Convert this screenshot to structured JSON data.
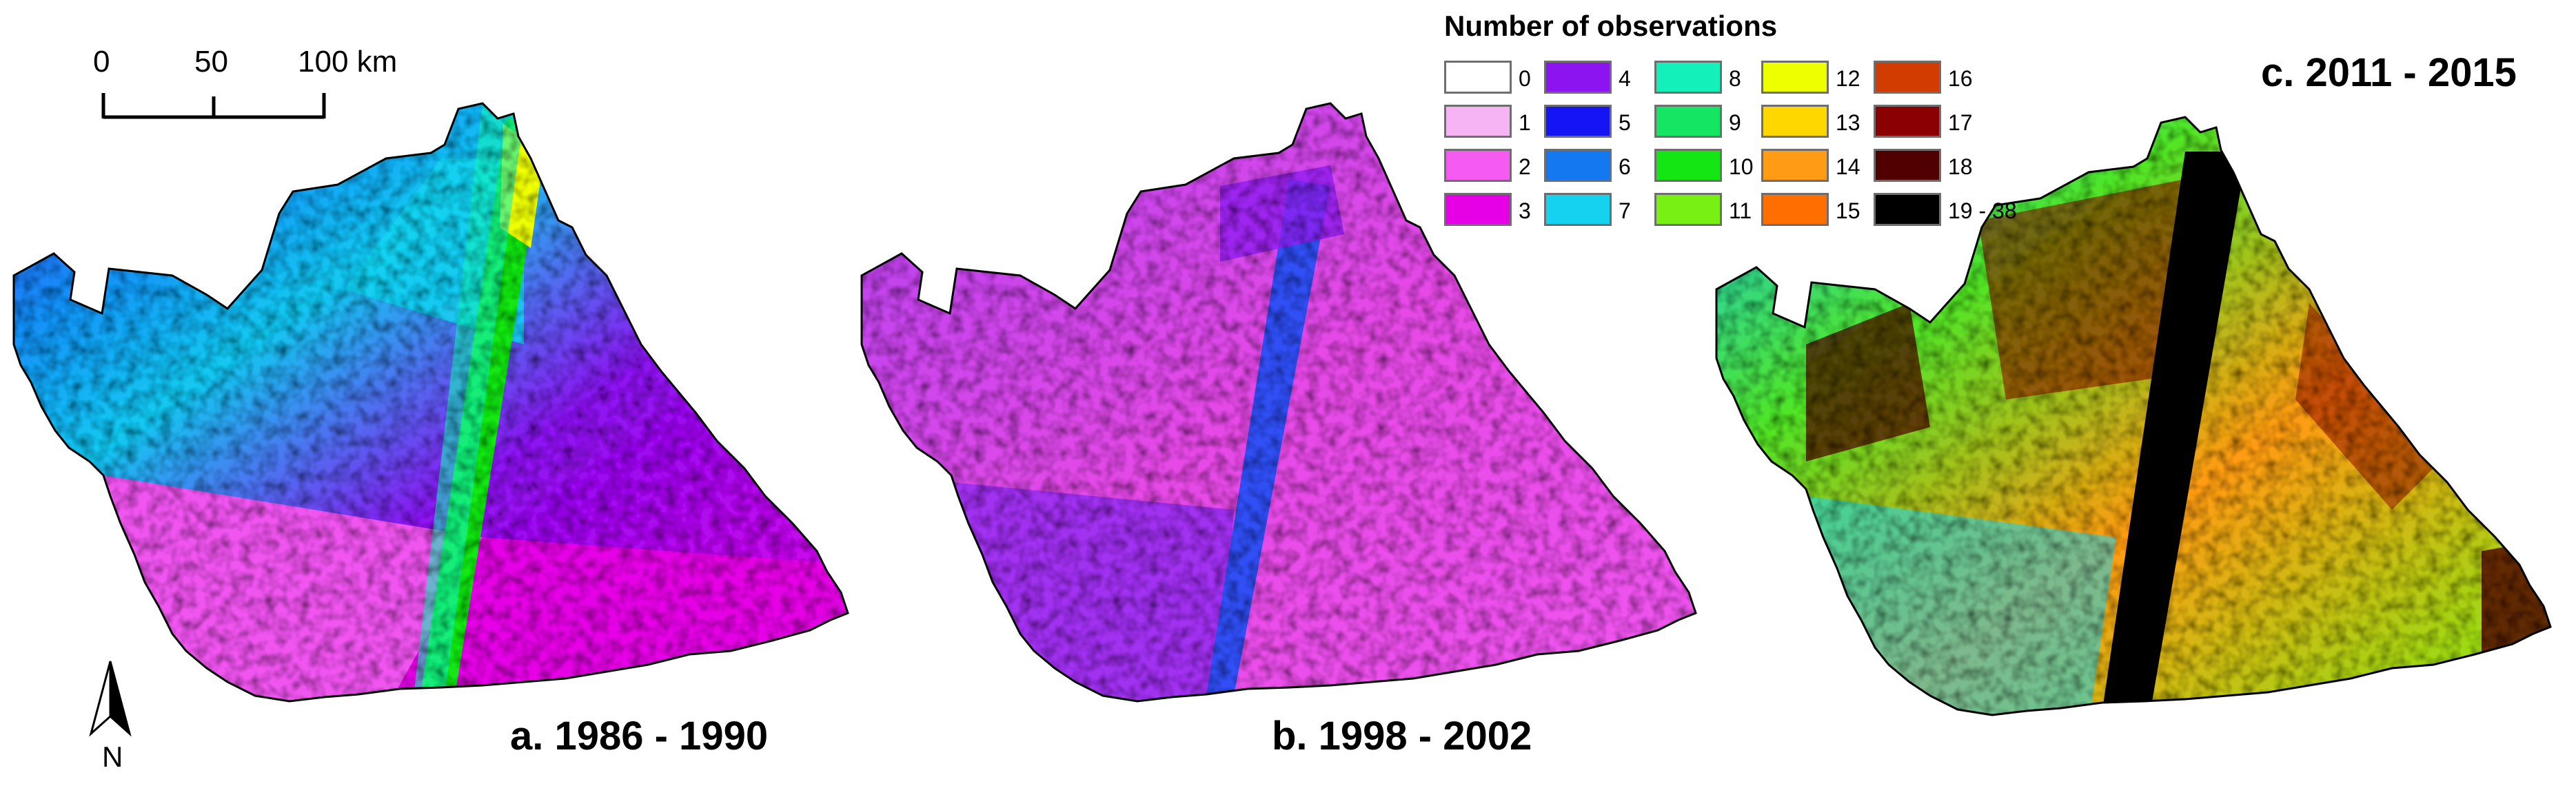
{
  "scale_bar": {
    "ticks": [
      "0",
      "50",
      "100 km"
    ]
  },
  "north_arrow": {
    "label": "N"
  },
  "panels": [
    {
      "label": "a. 1986 - 1990",
      "color_scheme": "low"
    },
    {
      "label": "b. 1998 - 2002",
      "color_scheme": "very-low"
    },
    {
      "label": "c. 2011 - 2015",
      "color_scheme": "high"
    }
  ],
  "legend": {
    "title": "Number of observations",
    "items": [
      {
        "label": "0",
        "color": "#ffffff"
      },
      {
        "label": "1",
        "color": "#f7b4f4"
      },
      {
        "label": "2",
        "color": "#f55bf0"
      },
      {
        "label": "3",
        "color": "#e600e6"
      },
      {
        "label": "4",
        "color": "#8c14f0"
      },
      {
        "label": "5",
        "color": "#1414f5"
      },
      {
        "label": "6",
        "color": "#1478f0"
      },
      {
        "label": "7",
        "color": "#14d2f0"
      },
      {
        "label": "8",
        "color": "#14f0b9"
      },
      {
        "label": "9",
        "color": "#14e664"
      },
      {
        "label": "10",
        "color": "#14e614"
      },
      {
        "label": "11",
        "color": "#78f014"
      },
      {
        "label": "12",
        "color": "#eeff00"
      },
      {
        "label": "13",
        "color": "#ffd700"
      },
      {
        "label": "14",
        "color": "#ff9b14"
      },
      {
        "label": "15",
        "color": "#ff6e00"
      },
      {
        "label": "16",
        "color": "#d23c00"
      },
      {
        "label": "17",
        "color": "#8b0000"
      },
      {
        "label": "18",
        "color": "#500000"
      },
      {
        "label": "19 - 38",
        "color": "#000000"
      }
    ]
  }
}
